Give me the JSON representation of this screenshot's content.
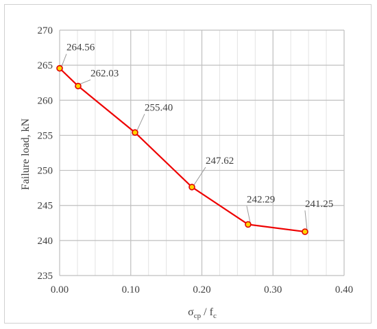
{
  "chart_data": {
    "type": "line",
    "title": "",
    "xlabel": {
      "main": "σ",
      "sub_cp": "cp",
      "sep": " / f",
      "sub_c": "c"
    },
    "ylabel": "Failure load, kN",
    "xlim": [
      0,
      0.4
    ],
    "ylim": [
      235,
      270
    ],
    "x_ticks": [
      "0.00",
      "0.10",
      "0.20",
      "0.30",
      "0.40"
    ],
    "y_ticks": [
      "235",
      "240",
      "245",
      "250",
      "255",
      "260",
      "265",
      "270"
    ],
    "grid": true,
    "legend": "none",
    "series": [
      {
        "x": [
          0.0,
          0.026,
          0.106,
          0.186,
          0.265,
          0.345
        ],
        "y": [
          264.56,
          262.03,
          255.4,
          247.62,
          242.29,
          241.25
        ],
        "labels": [
          "264.56",
          "262.03",
          "255.40",
          "247.62",
          "242.29",
          "241.25"
        ],
        "line_color": "#ee0000",
        "marker_fill": "#ffd500",
        "marker_edge": "#e00000"
      }
    ]
  }
}
